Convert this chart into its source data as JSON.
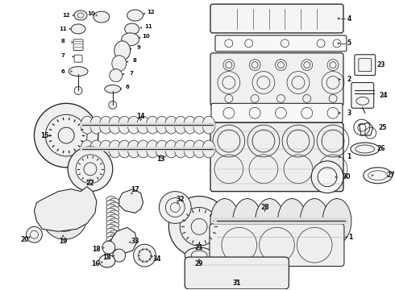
{
  "background_color": "#ffffff",
  "line_color": "#2a2a2a",
  "text_color": "#111111",
  "figsize": [
    4.9,
    3.6
  ],
  "dpi": 100,
  "gray": "#888888",
  "light_gray": "#cccccc"
}
